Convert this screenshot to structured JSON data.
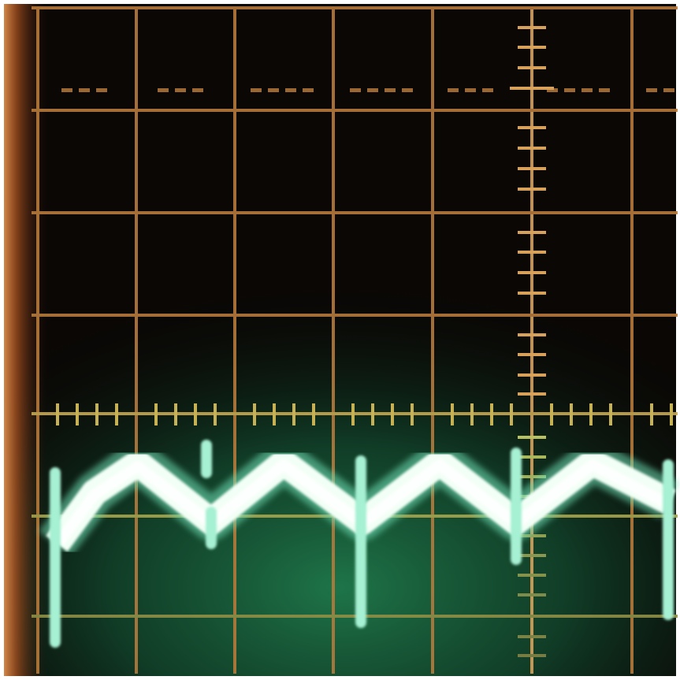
{
  "scene": {
    "subject": "oscilloscope-screen",
    "graticule": {
      "columns": 8,
      "rows": 8
    },
    "colors": {
      "graticule": "#b57a3c",
      "graticule_bright": "#d8a15a",
      "phosphor_glow": "#2fa36a",
      "trace": "#f2fff6",
      "trace_edge": "#8fe3c4",
      "background": "#0b0705",
      "bezel_glow": "#c7692a"
    }
  }
}
